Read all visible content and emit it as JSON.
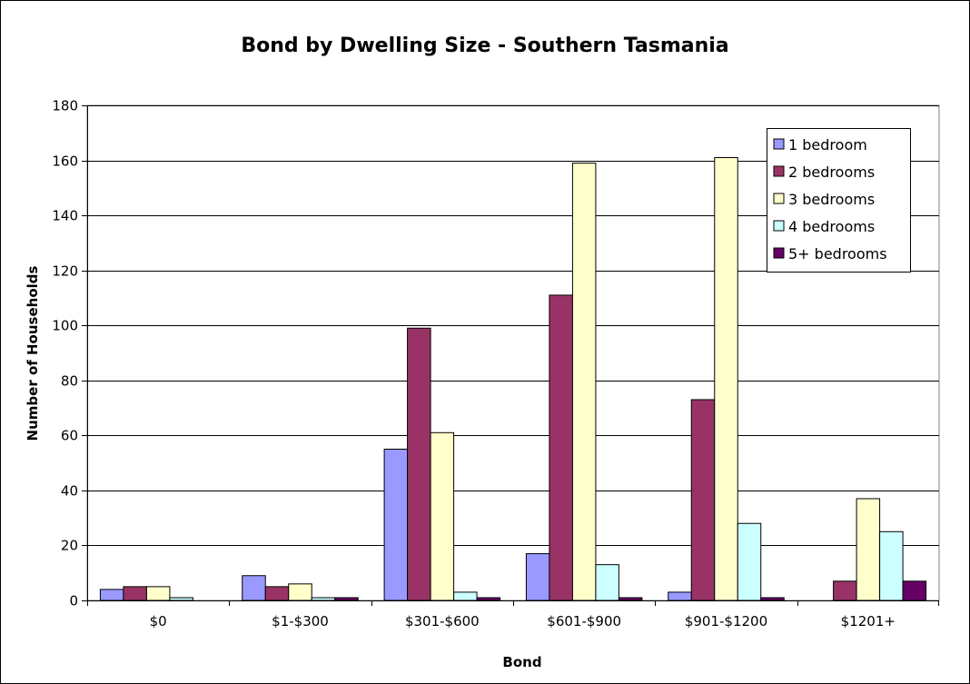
{
  "chart_data": {
    "type": "bar",
    "title": "Bond by Dwelling Size - Southern Tasmania",
    "xlabel": "Bond",
    "ylabel": "Number of Households",
    "ylim": [
      0,
      180
    ],
    "yticks": [
      0,
      20,
      40,
      60,
      80,
      100,
      120,
      140,
      160,
      180
    ],
    "grid": true,
    "legend": "top-right",
    "categories": [
      "$0",
      "$1-$300",
      "$301-$600",
      "$601-$900",
      "$901-$1200",
      "$1201+"
    ],
    "series": [
      {
        "name": "1 bedroom",
        "color": "#9999ff",
        "values": [
          4,
          9,
          55,
          17,
          3,
          0
        ]
      },
      {
        "name": "2 bedrooms",
        "color": "#993366",
        "values": [
          5,
          5,
          99,
          111,
          73,
          7
        ]
      },
      {
        "name": "3 bedrooms",
        "color": "#ffffcc",
        "values": [
          5,
          6,
          61,
          159,
          161,
          37
        ]
      },
      {
        "name": "4 bedrooms",
        "color": "#ccffff",
        "values": [
          1,
          1,
          3,
          13,
          28,
          25
        ]
      },
      {
        "name": "5+ bedrooms",
        "color": "#660066",
        "values": [
          0,
          1,
          1,
          1,
          1,
          7
        ]
      }
    ]
  }
}
